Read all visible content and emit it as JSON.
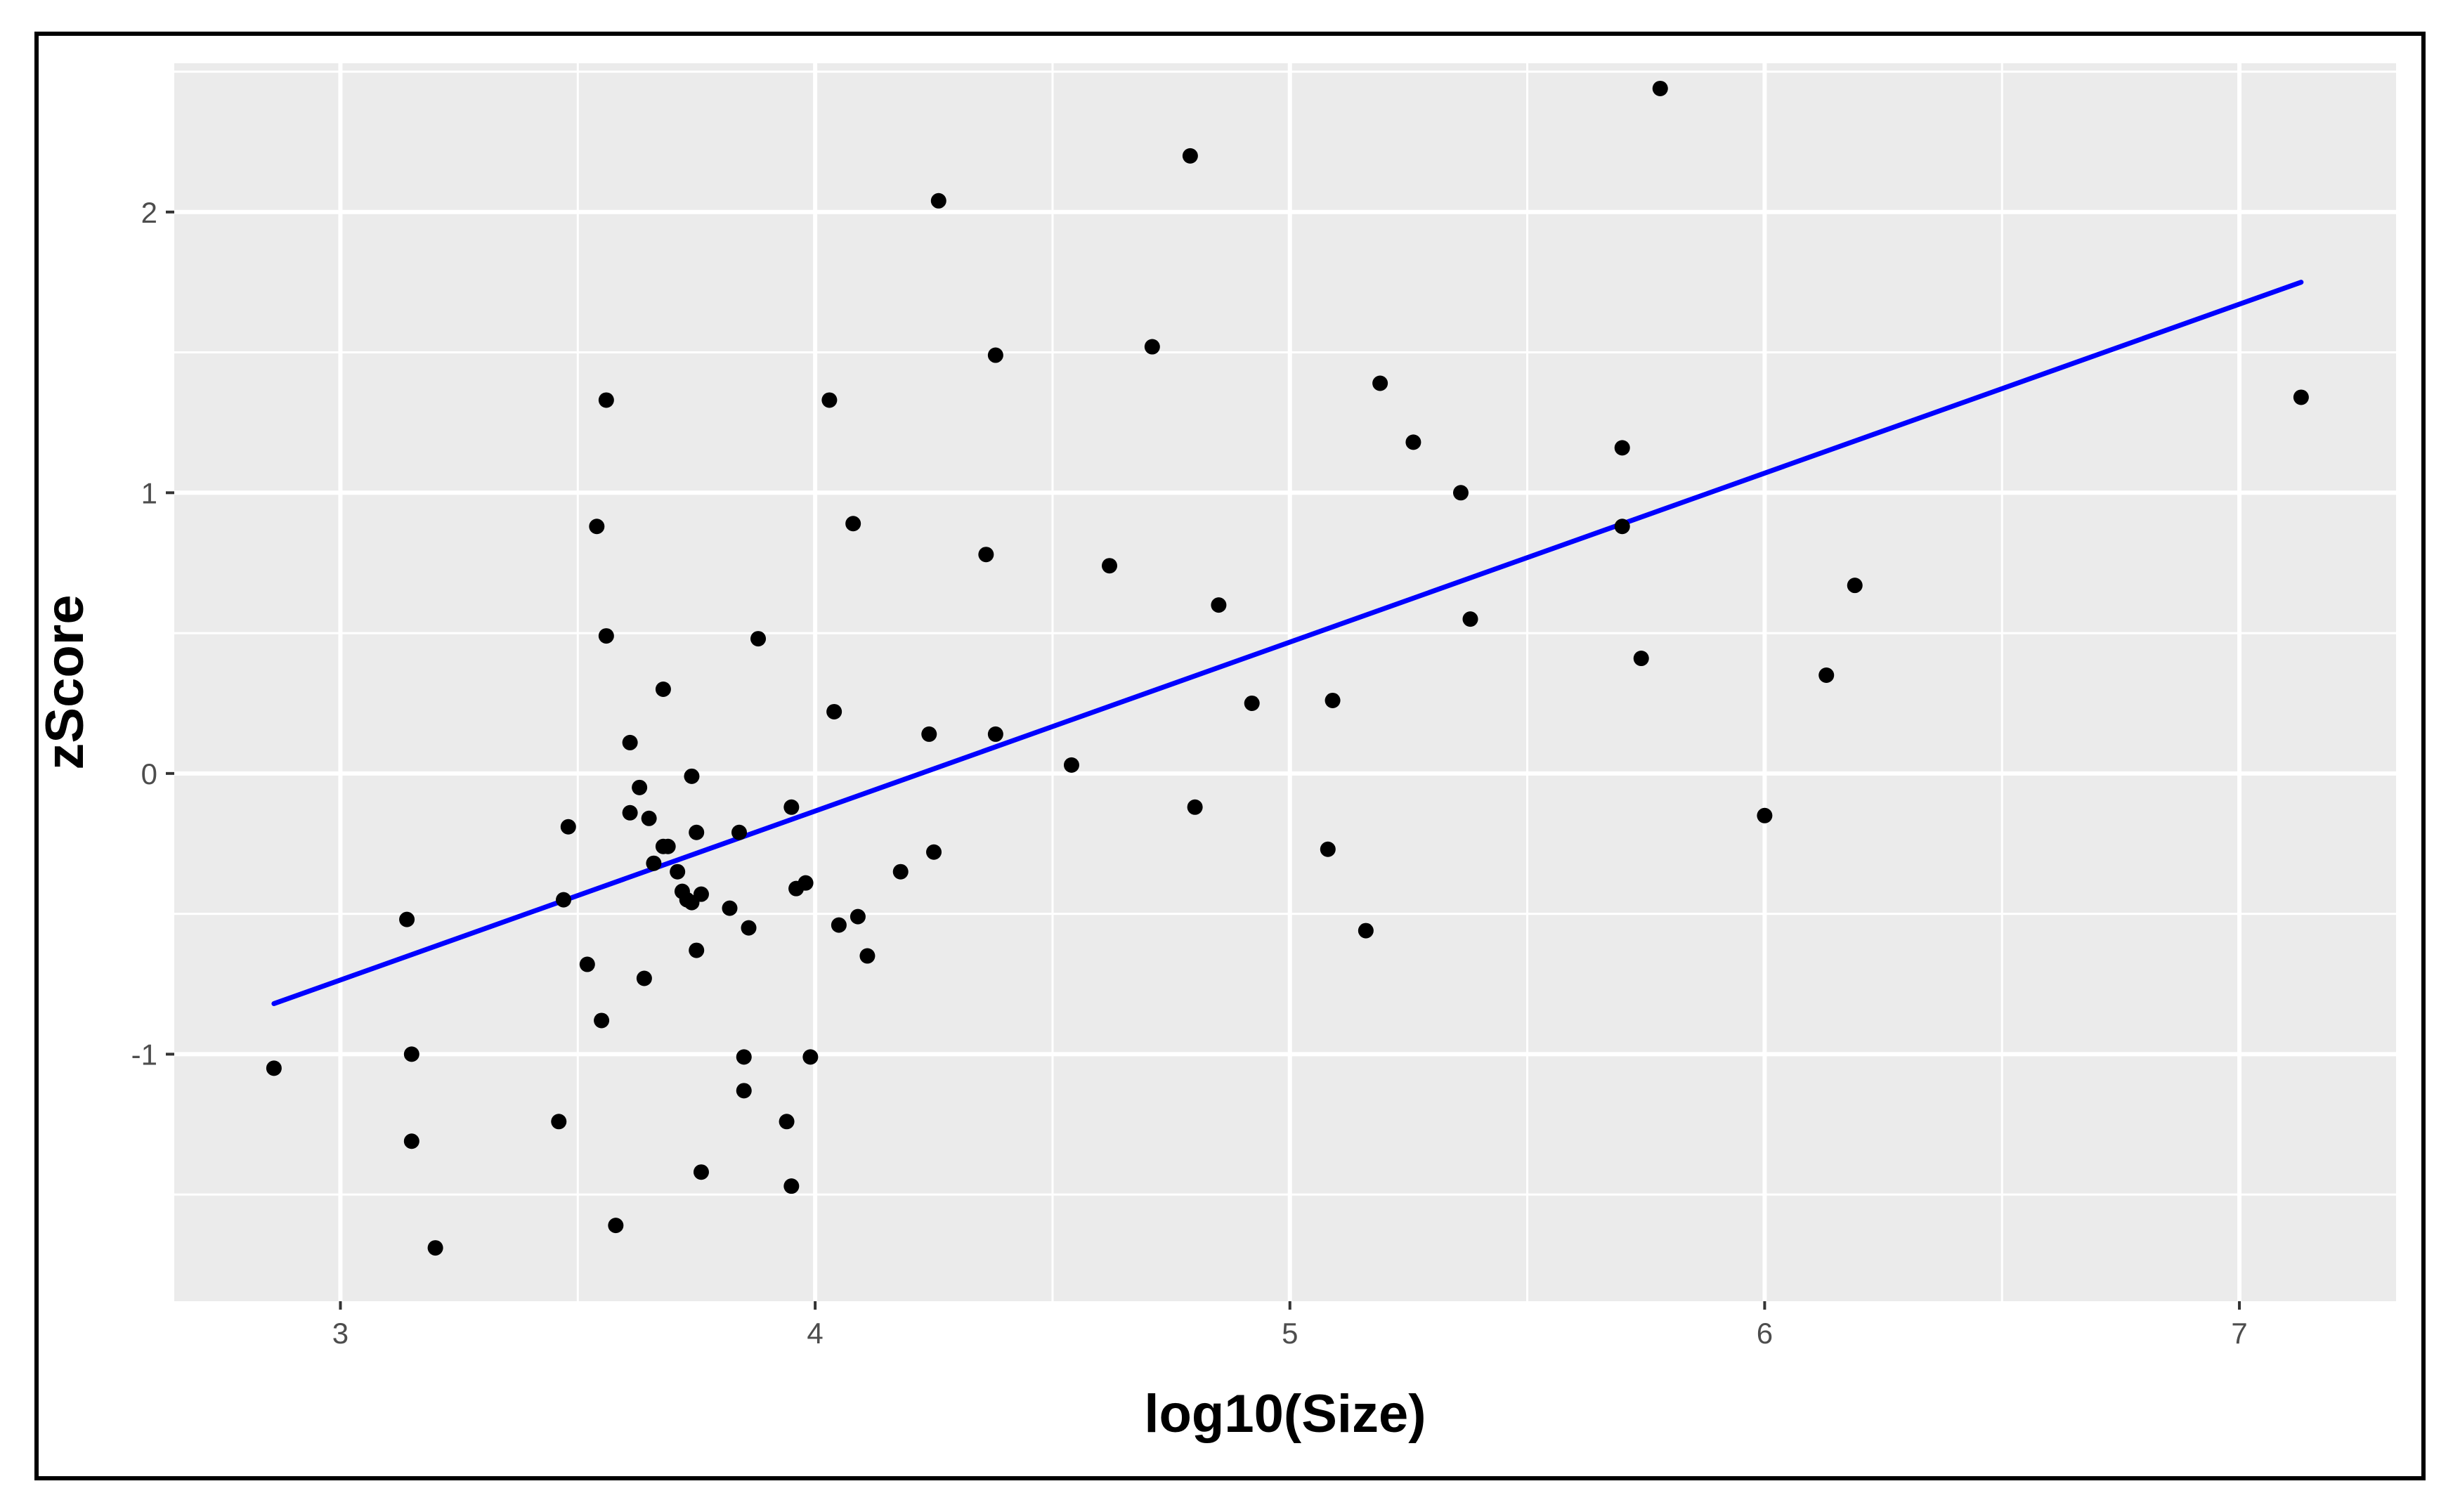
{
  "chart_data": {
    "type": "scatter",
    "title": "",
    "xlabel": "log10(Size)",
    "ylabel": "zScore",
    "xlim": [
      2.65,
      7.33
    ],
    "ylim": [
      -1.88,
      2.53
    ],
    "grid": true,
    "legend": "none",
    "x_ticks": [
      {
        "value": 3,
        "label": "3"
      },
      {
        "value": 4,
        "label": "4"
      },
      {
        "value": 5,
        "label": "5"
      },
      {
        "value": 6,
        "label": "6"
      },
      {
        "value": 7,
        "label": "7"
      }
    ],
    "y_ticks": [
      {
        "value": -1,
        "label": "-1"
      },
      {
        "value": 0,
        "label": "0"
      },
      {
        "value": 1,
        "label": "1"
      },
      {
        "value": 2,
        "label": "2"
      }
    ],
    "series": [
      {
        "kind": "points",
        "color": "#000000",
        "points": [
          [
            2.86,
            -1.05
          ],
          [
            3.14,
            -0.52
          ],
          [
            3.15,
            -1.0
          ],
          [
            3.15,
            -1.31
          ],
          [
            3.2,
            -1.69
          ],
          [
            3.46,
            -1.24
          ],
          [
            3.47,
            -0.45
          ],
          [
            3.48,
            -0.19
          ],
          [
            3.52,
            -0.68
          ],
          [
            3.54,
            0.88
          ],
          [
            3.55,
            -0.88
          ],
          [
            3.56,
            1.33
          ],
          [
            3.56,
            0.49
          ],
          [
            3.58,
            -1.61
          ],
          [
            3.61,
            0.11
          ],
          [
            3.61,
            -0.14
          ],
          [
            3.63,
            -0.05
          ],
          [
            3.64,
            -0.73
          ],
          [
            3.65,
            -0.16
          ],
          [
            3.66,
            -0.32
          ],
          [
            3.68,
            0.3
          ],
          [
            3.68,
            -0.26
          ],
          [
            3.69,
            -0.26
          ],
          [
            3.71,
            -0.35
          ],
          [
            3.72,
            -0.42
          ],
          [
            3.73,
            -0.45
          ],
          [
            3.74,
            -0.01
          ],
          [
            3.74,
            -0.46
          ],
          [
            3.75,
            -0.21
          ],
          [
            3.75,
            -0.63
          ],
          [
            3.76,
            -0.43
          ],
          [
            3.76,
            -1.42
          ],
          [
            3.82,
            -0.48
          ],
          [
            3.84,
            -0.21
          ],
          [
            3.85,
            -1.01
          ],
          [
            3.85,
            -1.13
          ],
          [
            3.86,
            -0.55
          ],
          [
            3.88,
            0.48
          ],
          [
            3.94,
            -1.24
          ],
          [
            3.95,
            -0.12
          ],
          [
            3.95,
            -1.47
          ],
          [
            3.96,
            -0.41
          ],
          [
            3.98,
            -0.39
          ],
          [
            3.99,
            -1.01
          ],
          [
            4.03,
            1.33
          ],
          [
            4.04,
            0.22
          ],
          [
            4.05,
            -0.54
          ],
          [
            4.08,
            0.89
          ],
          [
            4.09,
            -0.51
          ],
          [
            4.11,
            -0.65
          ],
          [
            4.18,
            -0.35
          ],
          [
            4.24,
            0.14
          ],
          [
            4.25,
            -0.28
          ],
          [
            4.26,
            2.04
          ],
          [
            4.36,
            0.78
          ],
          [
            4.38,
            1.49
          ],
          [
            4.38,
            0.14
          ],
          [
            4.54,
            0.03
          ],
          [
            4.62,
            0.74
          ],
          [
            4.71,
            1.52
          ],
          [
            4.79,
            2.2
          ],
          [
            4.8,
            -0.12
          ],
          [
            4.85,
            0.6
          ],
          [
            4.92,
            0.25
          ],
          [
            5.08,
            -0.27
          ],
          [
            5.09,
            0.26
          ],
          [
            5.16,
            -0.56
          ],
          [
            5.19,
            1.39
          ],
          [
            5.26,
            1.18
          ],
          [
            5.36,
            1.0
          ],
          [
            5.38,
            0.55
          ],
          [
            5.7,
            1.16
          ],
          [
            5.7,
            0.88
          ],
          [
            5.74,
            0.41
          ],
          [
            5.78,
            2.44
          ],
          [
            6.0,
            -0.15
          ],
          [
            6.13,
            0.35
          ],
          [
            6.19,
            0.67
          ],
          [
            7.13,
            1.34
          ]
        ]
      },
      {
        "kind": "fit-line",
        "color": "#0000ff",
        "points": [
          [
            2.86,
            -0.82
          ],
          [
            7.13,
            1.75
          ]
        ]
      }
    ]
  },
  "colors": {
    "panel_background": "#ebebeb",
    "grid": "#ffffff",
    "points": "#000000",
    "fit_line": "#0000ff",
    "tick_text": "#4d4d4d",
    "frame_border": "#000000"
  }
}
